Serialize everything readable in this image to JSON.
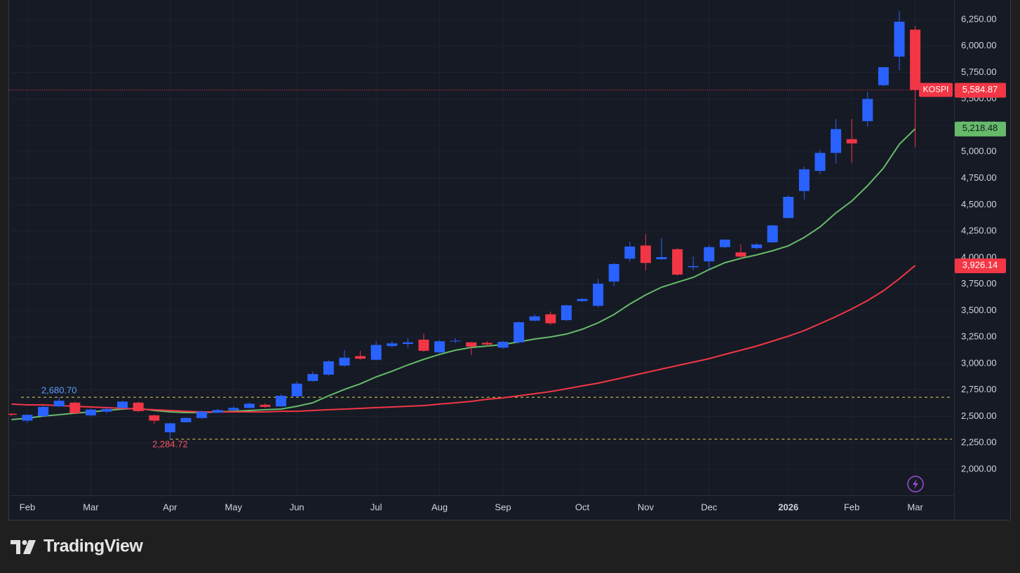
{
  "chart_data": {
    "type": "candlestick",
    "categories": [
      null,
      "Feb",
      null,
      null,
      null,
      "Mar",
      null,
      null,
      null,
      null,
      "Apr",
      null,
      null,
      null,
      "May",
      null,
      null,
      null,
      "Jun",
      null,
      null,
      null,
      null,
      "Jul",
      null,
      null,
      null,
      "Aug",
      null,
      null,
      null,
      "Sep",
      null,
      null,
      null,
      null,
      "Oct",
      null,
      null,
      null,
      "Nov",
      null,
      null,
      null,
      "Dec",
      null,
      null,
      null,
      null,
      "2026",
      null,
      null,
      null,
      "Feb",
      null,
      null,
      null,
      "Mar"
    ],
    "ohlc": {
      "name": "KOSPI",
      "up_color": "#2962ff",
      "down_color": "#f23645",
      "last_value_label": "5,584.87",
      "open": [
        2525,
        2460,
        2503,
        2595,
        2630,
        2510,
        2545,
        2580,
        2630,
        2510,
        2350,
        2445,
        2485,
        2535,
        2560,
        2580,
        2610,
        2595,
        2690,
        2835,
        2895,
        2980,
        3070,
        3035,
        3165,
        3185,
        3225,
        3105,
        3210,
        3200,
        3195,
        3150,
        3200,
        3405,
        3465,
        3410,
        3590,
        3545,
        3775,
        3990,
        4115,
        3985,
        4080,
        3910,
        3965,
        4100,
        4050,
        4090,
        4145,
        4375,
        4630,
        4820,
        4990,
        5120,
        5290,
        5630,
        5900,
        6155
      ],
      "high": [
        2530,
        2520,
        2600,
        2680.7,
        2640,
        2575,
        2590,
        2650,
        2640,
        2515,
        2440,
        2490,
        2555,
        2570,
        2595,
        2630,
        2625,
        2710,
        2830,
        2925,
        3030,
        3125,
        3120,
        3210,
        3210,
        3240,
        3280,
        3225,
        3240,
        3205,
        3210,
        3215,
        3395,
        3465,
        3490,
        3555,
        3615,
        3800,
        3950,
        4150,
        4225,
        4185,
        4090,
        4010,
        4120,
        4175,
        4125,
        4140,
        4310,
        4590,
        4860,
        5020,
        5310,
        5310,
        5570,
        5800,
        6330,
        6190
      ],
      "low": [
        2505,
        2440,
        2495,
        2590,
        2525,
        2500,
        2530,
        2575,
        2540,
        2430,
        2284.72,
        2440,
        2475,
        2530,
        2550,
        2575,
        2580,
        2590,
        2680,
        2830,
        2885,
        2970,
        3035,
        3030,
        3150,
        3150,
        3110,
        3100,
        3195,
        3080,
        3160,
        3140,
        3190,
        3395,
        3365,
        3400,
        3580,
        3530,
        3730,
        3960,
        3880,
        3980,
        3830,
        3880,
        3890,
        4090,
        3990,
        4080,
        4140,
        4370,
        4550,
        4790,
        4890,
        4895,
        5240,
        5620,
        5770,
        5045
      ],
      "close": [
        2515,
        2515,
        2590,
        2648,
        2530,
        2565,
        2570,
        2640,
        2550,
        2460,
        2435,
        2485,
        2545,
        2560,
        2580,
        2620,
        2590,
        2695,
        2810,
        2900,
        3020,
        3055,
        3045,
        3175,
        3190,
        3200,
        3120,
        3210,
        3215,
        3160,
        3180,
        3205,
        3390,
        3445,
        3380,
        3550,
        3610,
        3755,
        3940,
        4105,
        3950,
        4005,
        3840,
        3920,
        4100,
        4170,
        4010,
        4125,
        4305,
        4575,
        4835,
        4990,
        5215,
        5080,
        5500,
        5800,
        6230,
        5584.87
      ]
    },
    "series": [
      {
        "color": "#66bb6a",
        "last_value_label": "5,218.48",
        "values": [
          2470,
          2483,
          2503,
          2516,
          2530,
          2543,
          2556,
          2569,
          2576,
          2556,
          2543,
          2536,
          2536,
          2543,
          2549,
          2556,
          2563,
          2569,
          2596,
          2629,
          2695,
          2755,
          2808,
          2874,
          2927,
          2986,
          3039,
          3086,
          3125,
          3152,
          3165,
          3178,
          3205,
          3231,
          3251,
          3278,
          3324,
          3384,
          3463,
          3562,
          3648,
          3721,
          3768,
          3814,
          3887,
          3953,
          3993,
          4026,
          4065,
          4112,
          4191,
          4290,
          4423,
          4535,
          4681,
          4847,
          5072,
          5218.48
        ]
      },
      {
        "color": "#f23645",
        "last_value_label": "3,926.14",
        "values": [
          2616,
          2609,
          2609,
          2602,
          2596,
          2589,
          2583,
          2576,
          2569,
          2563,
          2556,
          2549,
          2543,
          2543,
          2543,
          2543,
          2543,
          2549,
          2549,
          2556,
          2563,
          2569,
          2576,
          2583,
          2589,
          2596,
          2602,
          2616,
          2629,
          2642,
          2662,
          2675,
          2695,
          2715,
          2735,
          2761,
          2788,
          2814,
          2847,
          2880,
          2914,
          2947,
          2980,
          3013,
          3046,
          3086,
          3125,
          3165,
          3211,
          3258,
          3311,
          3377,
          3443,
          3516,
          3595,
          3688,
          3801,
          3926.14
        ]
      }
    ],
    "annotations": [
      {
        "value": 2680.7,
        "label": "2,680.70",
        "color": "#5b9cf6"
      },
      {
        "value": 2284.72,
        "label": "2,284.72",
        "color": "#f7525f"
      }
    ],
    "ylim": [
      1755,
      6435
    ],
    "yticks": [
      {
        "value": 2000,
        "label": "2,000.00"
      },
      {
        "value": 2250,
        "label": "2,250.00"
      },
      {
        "value": 2500,
        "label": "2,500.00"
      },
      {
        "value": 2750,
        "label": "2,750.00"
      },
      {
        "value": 3000,
        "label": "3,000.00"
      },
      {
        "value": 3250,
        "label": "3,250.00"
      },
      {
        "value": 3500,
        "label": "3,500.00"
      },
      {
        "value": 3750,
        "label": "3,750.00"
      },
      {
        "value": 4000,
        "label": "4,000.00"
      },
      {
        "value": 4250,
        "label": "4,250.00"
      },
      {
        "value": 4500,
        "label": "4,500.00"
      },
      {
        "value": 4750,
        "label": "4,750.00"
      },
      {
        "value": 5000,
        "label": "5,000.00"
      },
      {
        "value": 5250,
        "label": "5,250.00"
      },
      {
        "value": 5500,
        "label": "5,500.00"
      },
      {
        "value": 5750,
        "label": "5,750.00"
      },
      {
        "value": 6000,
        "label": "6,000.00"
      },
      {
        "value": 6250,
        "label": "6,250.00"
      }
    ],
    "grid": true
  },
  "brand": "TradingView"
}
